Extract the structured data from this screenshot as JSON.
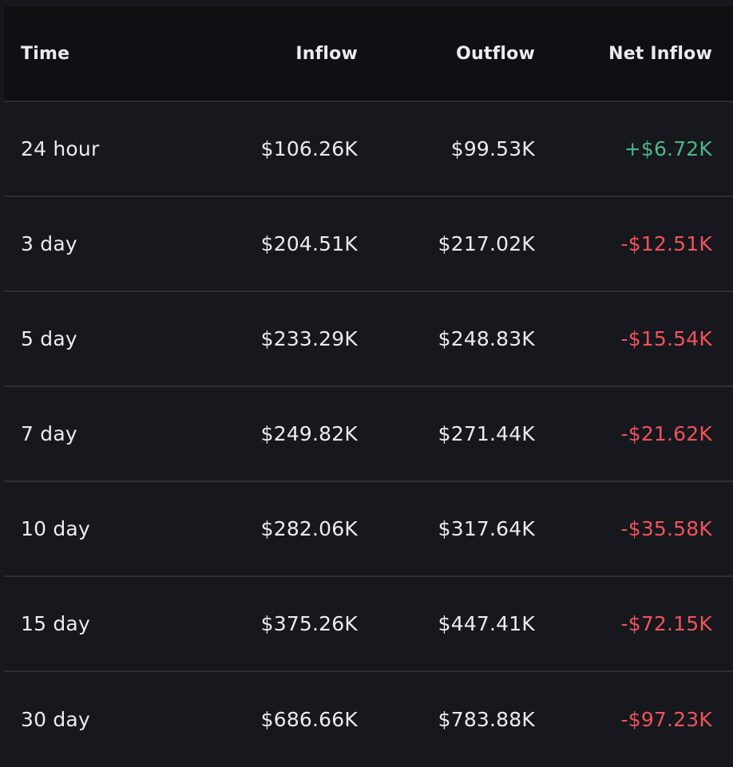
{
  "columns": {
    "time": "Time",
    "inflow": "Inflow",
    "outflow": "Outflow",
    "net_inflow": "Net Inflow"
  },
  "colors": {
    "positive": "#4fb58b",
    "negative": "#f0525c",
    "text": "#eaecef",
    "background": "#16181d",
    "header_background": "#0f1013",
    "divider": "#2c2f36"
  },
  "rows": [
    {
      "time": "24 hour",
      "inflow": "$106.26K",
      "outflow": "$99.53K",
      "net_inflow": "+$6.72K",
      "sign": "positive"
    },
    {
      "time": "3 day",
      "inflow": "$204.51K",
      "outflow": "$217.02K",
      "net_inflow": "-$12.51K",
      "sign": "negative"
    },
    {
      "time": "5 day",
      "inflow": "$233.29K",
      "outflow": "$248.83K",
      "net_inflow": "-$15.54K",
      "sign": "negative"
    },
    {
      "time": "7 day",
      "inflow": "$249.82K",
      "outflow": "$271.44K",
      "net_inflow": "-$21.62K",
      "sign": "negative"
    },
    {
      "time": "10 day",
      "inflow": "$282.06K",
      "outflow": "$317.64K",
      "net_inflow": "-$35.58K",
      "sign": "negative"
    },
    {
      "time": "15 day",
      "inflow": "$375.26K",
      "outflow": "$447.41K",
      "net_inflow": "-$72.15K",
      "sign": "negative"
    },
    {
      "time": "30 day",
      "inflow": "$686.66K",
      "outflow": "$783.88K",
      "net_inflow": "-$97.23K",
      "sign": "negative"
    }
  ]
}
